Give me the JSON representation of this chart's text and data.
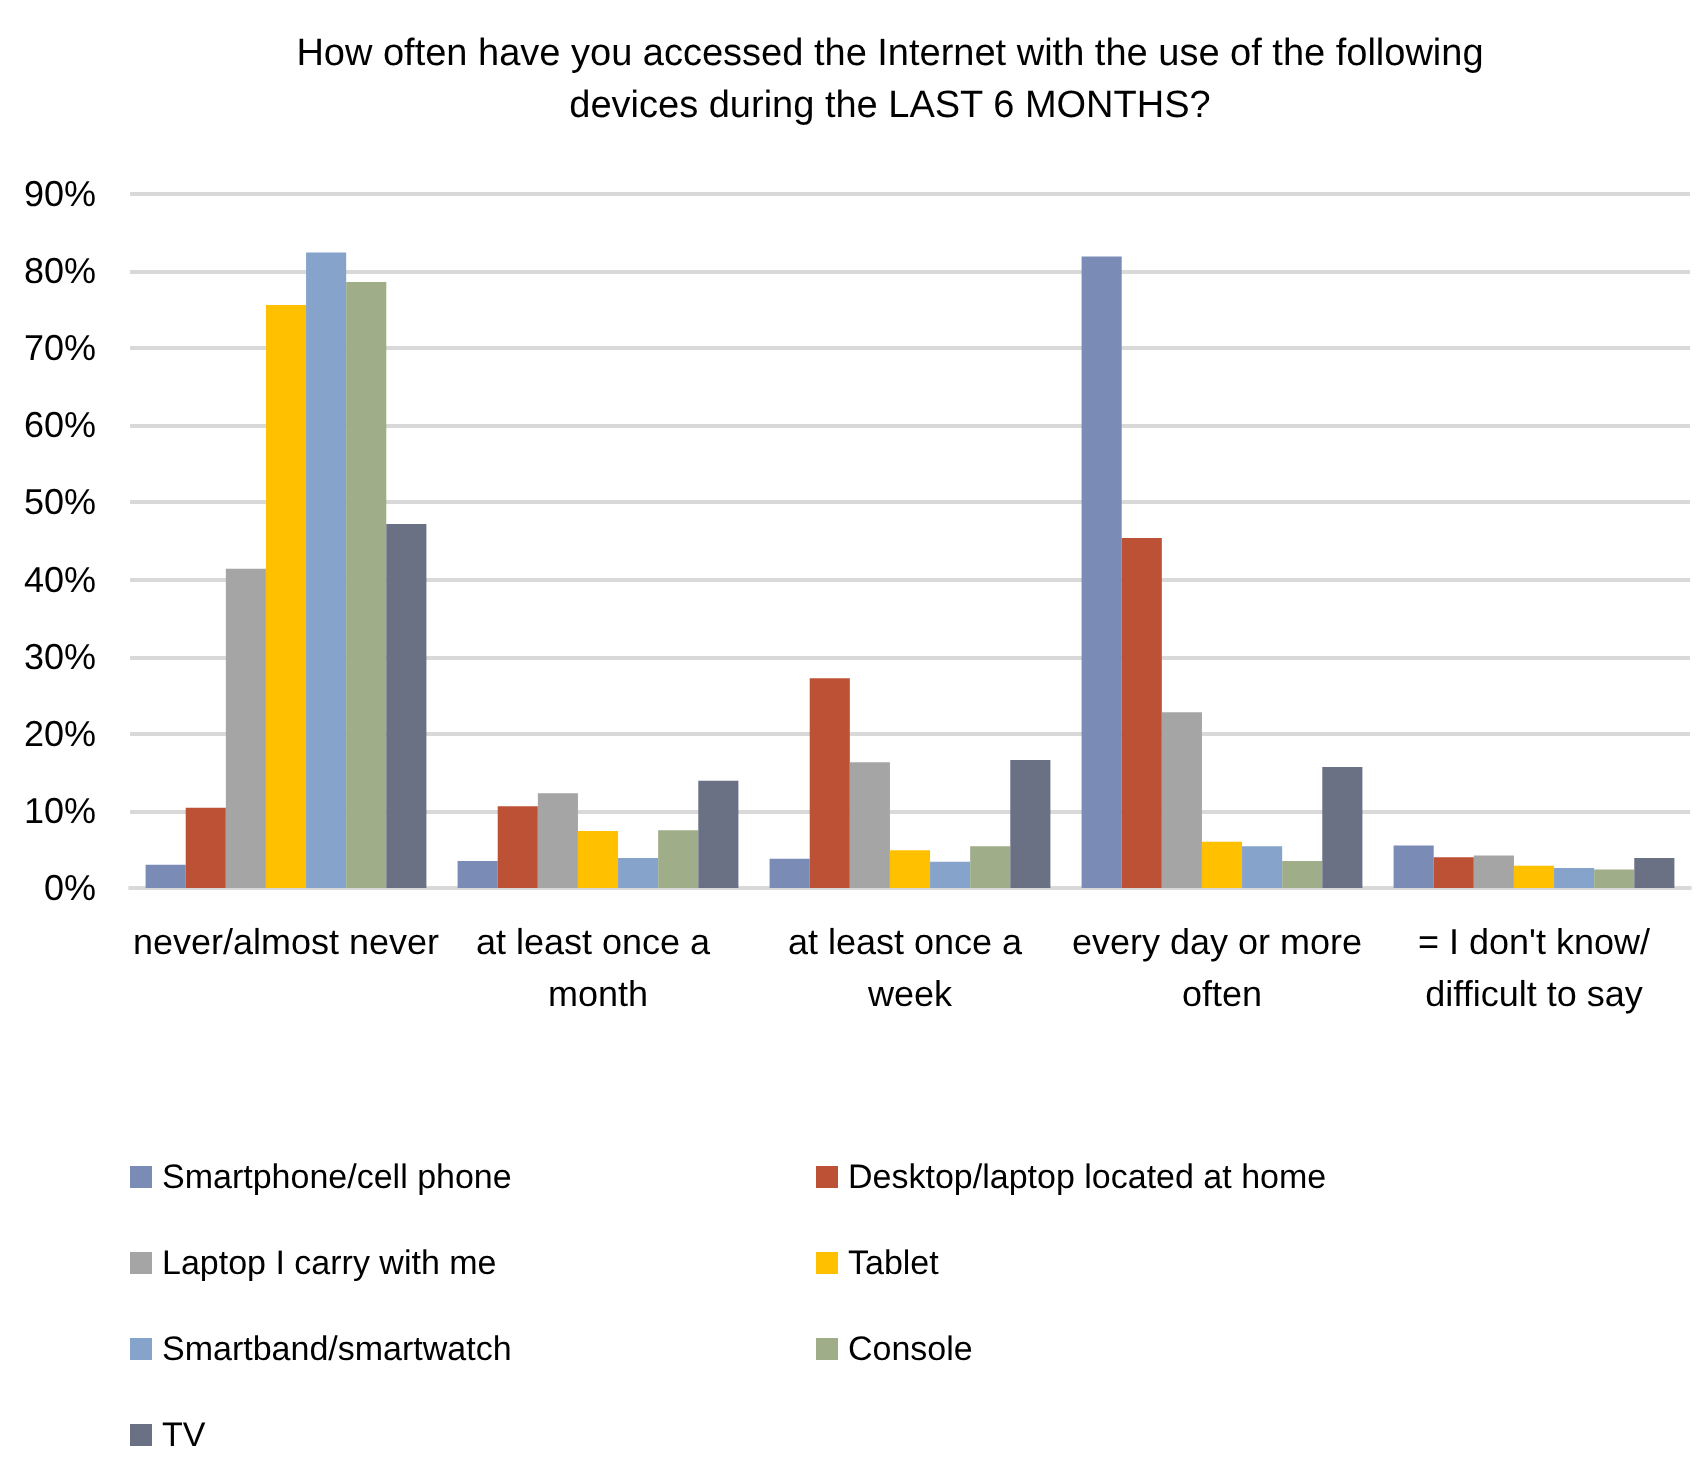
{
  "chart_data": {
    "type": "bar",
    "title": "How often have you accessed the Internet with the use of the following devices during the LAST 6 MONTHS?",
    "categories": [
      "never/almost never",
      "at least once a month",
      "at least once a week",
      "every day or more often",
      "= I don't know/difficult to say"
    ],
    "series": [
      {
        "name": "Smartphone/cell phone",
        "color": "#7a8cb5",
        "values": [
          3.0,
          3.5,
          3.8,
          81.9,
          5.5
        ]
      },
      {
        "name": "Desktop/laptop located at home",
        "color": "#bd5135",
        "values": [
          10.4,
          10.6,
          27.2,
          45.4,
          4.0
        ]
      },
      {
        "name": "Laptop I carry with me",
        "color": "#a5a5a5",
        "values": [
          41.4,
          12.3,
          16.3,
          22.8,
          4.2
        ]
      },
      {
        "name": "Tablet",
        "color": "#ffc000",
        "values": [
          75.6,
          7.4,
          4.9,
          6.0,
          2.9
        ]
      },
      {
        "name": "Smartband/smartwatch",
        "color": "#86a4cb",
        "values": [
          82.4,
          3.9,
          3.4,
          5.4,
          2.6
        ]
      },
      {
        "name": "Console",
        "color": "#9fad88",
        "values": [
          78.6,
          7.5,
          5.4,
          3.5,
          2.4
        ]
      },
      {
        "name": "TV",
        "color": "#6b7184",
        "values": [
          47.2,
          13.9,
          16.6,
          15.7,
          3.9
        ]
      }
    ],
    "ylim": [
      0,
      90
    ],
    "yticks": [
      {
        "value": 0,
        "label": "0%"
      },
      {
        "value": 10,
        "label": "10%"
      },
      {
        "value": 20,
        "label": "20%"
      },
      {
        "value": 30,
        "label": "30%"
      },
      {
        "value": 40,
        "label": "40%"
      },
      {
        "value": 50,
        "label": "50%"
      },
      {
        "value": 60,
        "label": "60%"
      },
      {
        "value": 70,
        "label": "70%"
      },
      {
        "value": 80,
        "label": "80%"
      },
      {
        "value": 90,
        "label": "90%"
      }
    ],
    "grid": "y",
    "legend": "bottom"
  }
}
